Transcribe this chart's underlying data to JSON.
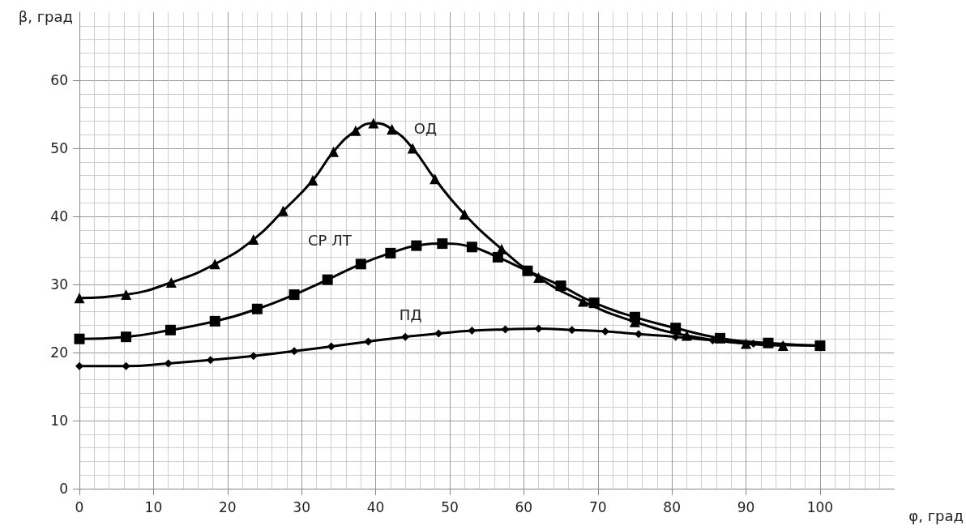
{
  "chart_data": {
    "type": "line",
    "xlabel": "φ, град",
    "ylabel": "β, град",
    "xlim": [
      0,
      110
    ],
    "xticks": [
      0,
      10,
      20,
      30,
      40,
      50,
      60,
      70,
      80,
      90,
      100
    ],
    "ylim": [
      0,
      70
    ],
    "yticks": [
      0,
      10,
      20,
      30,
      40,
      50,
      60
    ],
    "grid": true,
    "line_style": "solid",
    "series": [
      {
        "name": "ОД",
        "color": "#000000",
        "marker": "triangle",
        "x": [
          0,
          6.3,
          12.4,
          18.3,
          23.5,
          27.5,
          31.5,
          34.3,
          37.3,
          39.7,
          42.2,
          45,
          48,
          52,
          57,
          62,
          68,
          75,
          82,
          90,
          95
        ],
        "values": [
          28,
          28.5,
          30.3,
          33,
          36.6,
          40.8,
          45.3,
          49.5,
          52.6,
          53.7,
          52.8,
          50,
          45.5,
          40.3,
          35.2,
          31,
          27.5,
          24.5,
          22.5,
          21.3,
          21
        ]
      },
      {
        "name": "СР ЛТ",
        "color": "#000000",
        "marker": "square",
        "x": [
          0,
          6.3,
          12.3,
          18.3,
          24,
          29,
          33.5,
          38,
          42,
          45.5,
          49,
          53,
          56.5,
          60.5,
          65,
          69.5,
          75,
          80.5,
          86.5,
          93,
          100
        ],
        "values": [
          22,
          22.3,
          23.3,
          24.6,
          26.4,
          28.5,
          30.7,
          33,
          34.6,
          35.7,
          36,
          35.5,
          34,
          32,
          29.8,
          27.3,
          25.2,
          23.6,
          22.1,
          21.4,
          21
        ]
      },
      {
        "name": "ПД",
        "color": "#000000",
        "marker": "diamond",
        "x": [
          0,
          6.3,
          12,
          17.7,
          23.5,
          29,
          34,
          39,
          44,
          48.5,
          53,
          57.5,
          62,
          66.5,
          71,
          75.5,
          80.5,
          85.5,
          91,
          95,
          100
        ],
        "values": [
          18,
          18,
          18.4,
          18.9,
          19.5,
          20.2,
          20.9,
          21.6,
          22.3,
          22.8,
          23.2,
          23.4,
          23.5,
          23.3,
          23.1,
          22.7,
          22.3,
          21.8,
          21.3,
          21.1,
          21
        ]
      }
    ]
  }
}
